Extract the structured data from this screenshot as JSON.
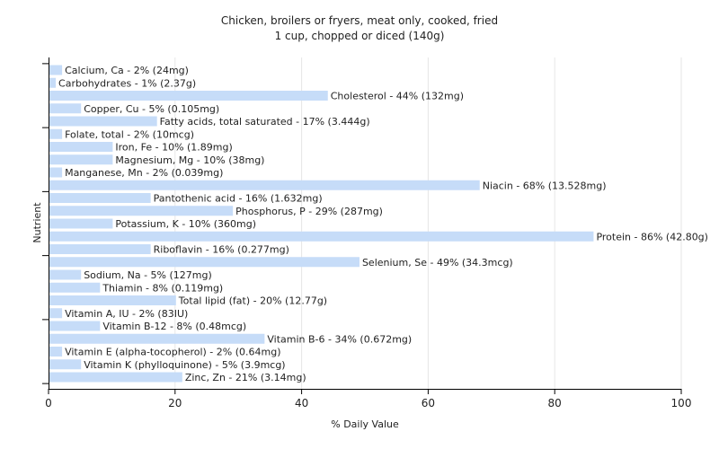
{
  "chart_data": {
    "type": "bar",
    "orientation": "horizontal",
    "title": "Chicken, broilers or fryers, meat only, cooked, fried",
    "subtitle": "1 cup, chopped or diced (140g)",
    "xlabel": "% Daily Value",
    "ylabel": "Nutrient",
    "xlim": [
      0,
      100
    ],
    "xticks": [
      0,
      20,
      40,
      60,
      80,
      100
    ],
    "grid": true,
    "bar_color": "#c6dcf8",
    "categories": [
      "Calcium, Ca",
      "Carbohydrates",
      "Cholesterol",
      "Copper, Cu",
      "Fatty acids, total saturated",
      "Folate, total",
      "Iron, Fe",
      "Magnesium, Mg",
      "Manganese, Mn",
      "Niacin",
      "Pantothenic acid",
      "Phosphorus, P",
      "Potassium, K",
      "Protein",
      "Riboflavin",
      "Selenium, Se",
      "Sodium, Na",
      "Thiamin",
      "Total lipid (fat)",
      "Vitamin A, IU",
      "Vitamin B-12",
      "Vitamin B-6",
      "Vitamin E (alpha-tocopherol)",
      "Vitamin K (phylloquinone)",
      "Zinc, Zn"
    ],
    "values": [
      2,
      1,
      44,
      5,
      17,
      2,
      10,
      10,
      2,
      68,
      16,
      29,
      10,
      86,
      16,
      49,
      5,
      8,
      20,
      2,
      8,
      34,
      2,
      5,
      21
    ],
    "labels": [
      "Calcium, Ca - 2% (24mg)",
      "Carbohydrates - 1% (2.37g)",
      "Cholesterol - 44% (132mg)",
      "Copper, Cu - 5% (0.105mg)",
      "Fatty acids, total saturated - 17% (3.444g)",
      "Folate, total - 2% (10mcg)",
      "Iron, Fe - 10% (1.89mg)",
      "Magnesium, Mg - 10% (38mg)",
      "Manganese, Mn - 2% (0.039mg)",
      "Niacin - 68% (13.528mg)",
      "Pantothenic acid - 16% (1.632mg)",
      "Phosphorus, P - 29% (287mg)",
      "Potassium, K - 10% (360mg)",
      "Protein - 86% (42.80g)",
      "Riboflavin - 16% (0.277mg)",
      "Selenium, Se - 49% (34.3mcg)",
      "Sodium, Na - 5% (127mg)",
      "Thiamin - 8% (0.119mg)",
      "Total lipid (fat) - 20% (12.77g)",
      "Vitamin A, IU - 2% (83IU)",
      "Vitamin B-12 - 8% (0.48mcg)",
      "Vitamin B-6 - 34% (0.672mg)",
      "Vitamin E (alpha-tocopherol) - 2% (0.64mg)",
      "Vitamin K (phylloquinone) - 5% (3.9mcg)",
      "Zinc, Zn - 21% (3.14mg)"
    ]
  }
}
